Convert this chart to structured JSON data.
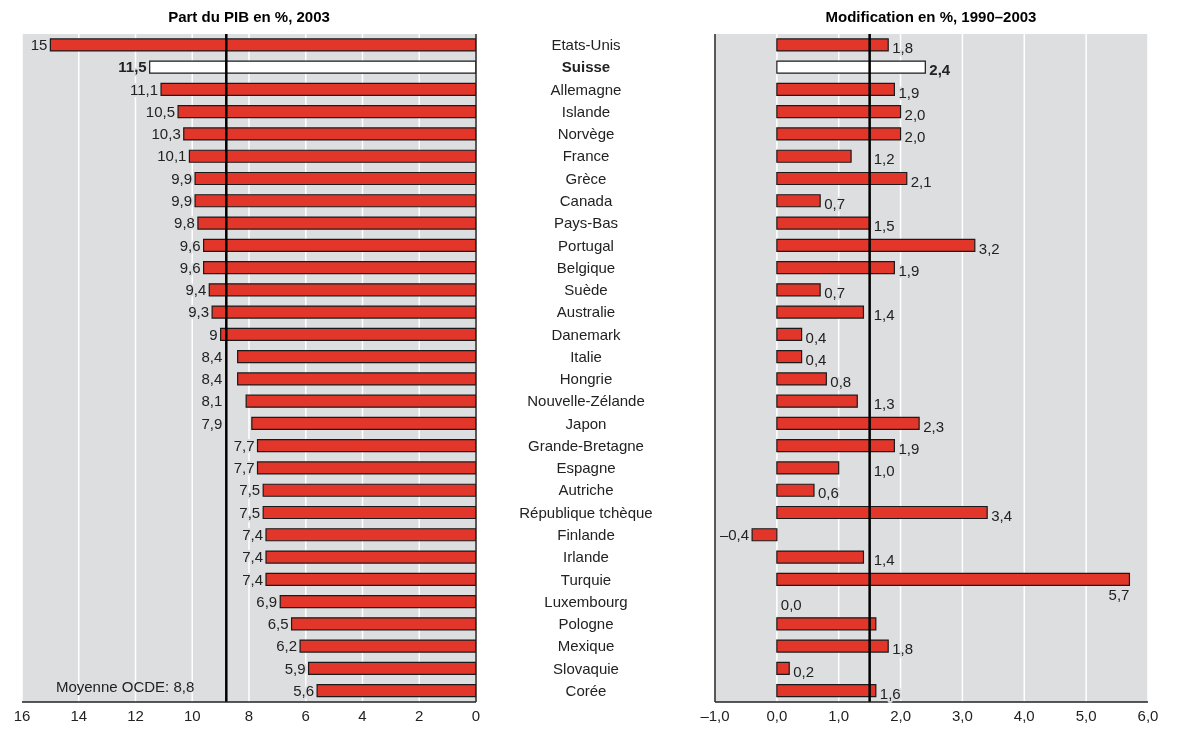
{
  "chart_data": [
    {
      "type": "bar",
      "orientation": "horizontal",
      "title": "Part du PIB en %, 2003",
      "categories": [
        "Etats-Unis",
        "Suisse",
        "Allemagne",
        "Islande",
        "Norvège",
        "France",
        "Grèce",
        "Canada",
        "Pays-Bas",
        "Portugal",
        "Belgique",
        "Suède",
        "Australie",
        "Danemark",
        "Italie",
        "Hongrie",
        "Nouvelle-Zélande",
        "Japon",
        "Grande-Bretagne",
        "Espagne",
        "Autriche",
        "République tchèque",
        "Finlande",
        "Irlande",
        "Turquie",
        "Luxembourg",
        "Pologne",
        "Mexique",
        "Slovaquie",
        "Corée"
      ],
      "values": [
        15,
        11.5,
        11.1,
        10.5,
        10.3,
        10.1,
        9.9,
        9.9,
        9.8,
        9.6,
        9.6,
        9.4,
        9.3,
        9,
        8.4,
        8.4,
        8.1,
        7.9,
        7.7,
        7.7,
        7.5,
        7.5,
        7.4,
        7.4,
        7.4,
        6.9,
        6.5,
        6.2,
        5.9,
        5.6
      ],
      "value_labels": [
        "15",
        "11,5",
        "11,1",
        "10,5",
        "10,3",
        "10,1",
        "9,9",
        "9,9",
        "9,8",
        "9,6",
        "9,6",
        "9,4",
        "9,3",
        "9",
        "8,4",
        "8,4",
        "8,1",
        "7,9",
        "7,7",
        "7,7",
        "7,5",
        "7,5",
        "7,4",
        "7,4",
        "7,4",
        "6,9",
        "6,5",
        "6,2",
        "5,9",
        "5,6"
      ],
      "colors": [
        "#e2362b",
        "#ffffff",
        "#e2362b",
        "#e2362b",
        "#e2362b",
        "#e2362b",
        "#e2362b",
        "#e2362b",
        "#e2362b",
        "#e2362b",
        "#e2362b",
        "#e2362b",
        "#e2362b",
        "#e2362b",
        "#e2362b",
        "#e2362b",
        "#e2362b",
        "#e2362b",
        "#e2362b",
        "#e2362b",
        "#e2362b",
        "#e2362b",
        "#e2362b",
        "#e2362b",
        "#e2362b",
        "#e2362b",
        "#e2362b",
        "#e2362b",
        "#e2362b",
        "#e2362b"
      ],
      "xlim": [
        16,
        0
      ],
      "xticks": [
        16,
        14,
        12,
        10,
        8,
        6,
        4,
        2,
        0
      ],
      "grid": "x",
      "ref_lines": [
        {
          "axis": "x",
          "value": 8.8,
          "label": "Moyenne OCDE: 8,8",
          "color": "#000000"
        }
      ]
    },
    {
      "type": "bar",
      "orientation": "horizontal",
      "title": "Modification en %, 1990–2003",
      "categories": [
        "Etats-Unis",
        "Suisse",
        "Allemagne",
        "Islande",
        "Norvège",
        "France",
        "Grèce",
        "Canada",
        "Pays-Bas",
        "Portugal",
        "Belgique",
        "Suède",
        "Australie",
        "Danemark",
        "Italie",
        "Hongrie",
        "Nouvelle-Zélande",
        "Japon",
        "Grande-Bretagne",
        "Espagne",
        "Autriche",
        "République tchèque",
        "Finlande",
        "Irlande",
        "Turquie",
        "Luxembourg",
        "Pologne",
        "Mexique",
        "Slovaquie",
        "Corée"
      ],
      "values": [
        1.8,
        2.4,
        1.9,
        2.0,
        2.0,
        1.2,
        2.1,
        0.7,
        1.5,
        3.2,
        1.9,
        0.7,
        1.4,
        0.4,
        0.4,
        0.8,
        1.3,
        2.3,
        1.9,
        1.0,
        0.6,
        3.4,
        -0.4,
        1.4,
        5.7,
        0.0,
        1.6,
        1.8,
        0.2,
        1.6
      ],
      "value_labels": [
        "1,8",
        "2,4",
        "1,9",
        "2,0",
        "2,0",
        "1,2",
        "2,1",
        "0,7",
        "1,5",
        "3,2",
        "1,9",
        "0,7",
        "1,4",
        "0,4",
        "0,4",
        "0,8",
        "1,3",
        "2,3",
        "1,9",
        "1,0",
        "0,6",
        "3,4",
        "–0,4",
        "1,4",
        "5,7",
        "0,0",
        null,
        "1,8",
        "0,2",
        "1,6"
      ],
      "colors": [
        "#e2362b",
        "#ffffff",
        "#e2362b",
        "#e2362b",
        "#e2362b",
        "#e2362b",
        "#e2362b",
        "#e2362b",
        "#e2362b",
        "#e2362b",
        "#e2362b",
        "#e2362b",
        "#e2362b",
        "#e2362b",
        "#e2362b",
        "#e2362b",
        "#e2362b",
        "#e2362b",
        "#e2362b",
        "#e2362b",
        "#e2362b",
        "#e2362b",
        "#e2362b",
        "#e2362b",
        "#e2362b",
        "#e2362b",
        "#e2362b",
        "#e2362b",
        "#e2362b",
        "#e2362b"
      ],
      "xlim": [
        -1,
        6
      ],
      "xticks": [
        {
          "value": -1,
          "label": "–1,0"
        },
        {
          "value": 0,
          "label": "0,0"
        },
        {
          "value": 1,
          "label": "1,0"
        },
        {
          "value": 2,
          "label": "2,0"
        },
        {
          "value": 3,
          "label": "3,0"
        },
        {
          "value": 4,
          "label": "4,0"
        },
        {
          "value": 5,
          "label": "5,0"
        },
        {
          "value": 6,
          "label": "6,0"
        }
      ],
      "grid": "x",
      "tick_labels": "x",
      "ref_lines": [
        {
          "axis": "x",
          "value": 1.5,
          "color": "#000000"
        }
      ]
    }
  ]
}
